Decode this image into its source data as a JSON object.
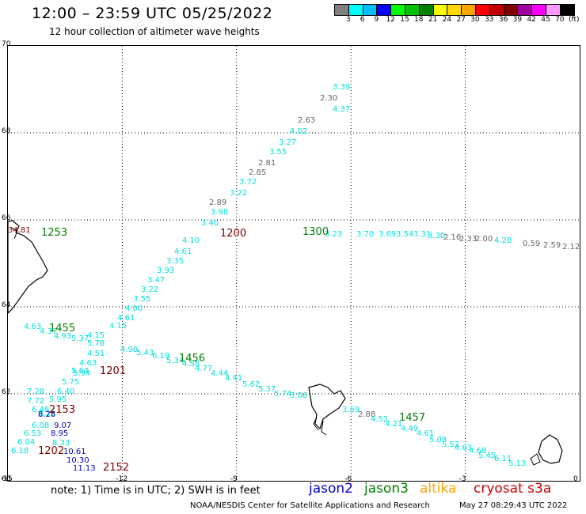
{
  "title": "12:00 – 23:59 UTC 05/25/2022",
  "subtitle": "12 hour collection of altimeter wave heights",
  "colorbar": {
    "unit": "(ft)",
    "colors": [
      "#808080",
      "#00ffff",
      "#00bfff",
      "#0000ff",
      "#00ff00",
      "#00c000",
      "#008000",
      "#ffff00",
      "#ffd700",
      "#ffa500",
      "#ff0000",
      "#c00000",
      "#800000",
      "#a000a0",
      "#ff00ff",
      "#ff99ff",
      "#000000"
    ],
    "labels": [
      "3",
      "6",
      "9",
      "12",
      "15",
      "18",
      "21",
      "24",
      "27",
      "30",
      "33",
      "36",
      "39",
      "42",
      "45",
      "70"
    ]
  },
  "axes": {
    "lon_labels": [
      "-15",
      "-12",
      "-9",
      "-6",
      "-3",
      "0"
    ],
    "lat_labels": [
      "70",
      "68",
      "66",
      "64",
      "62",
      "60"
    ]
  },
  "note": "note:  1) Time is in UTC; 2) SWH is in feet",
  "satellites": [
    {
      "name": "jason2",
      "color": "#0000cc"
    },
    {
      "name": "jason3",
      "color": "#008000"
    },
    {
      "name": "altika",
      "color": "#ffa500"
    },
    {
      "name": "cryosat s3a",
      "color": "#cc0000"
    }
  ],
  "credit": "NOAA/NESDIS Center for Satellite Applications and Research",
  "timestamp": "May 27 08:29:43 UTC 2022",
  "times": [
    {
      "t": "1253",
      "color": "#008000"
    },
    {
      "t": "1200",
      "color": "#800000"
    },
    {
      "t": "1300",
      "color": "#008000"
    },
    {
      "t": "1455",
      "color": "#008000"
    },
    {
      "t": "1456",
      "color": "#008000"
    },
    {
      "t": "1201",
      "color": "#800000"
    },
    {
      "t": "2153",
      "color": "#800000"
    },
    {
      "t": "1202",
      "color": "#800000"
    },
    {
      "t": "2152",
      "color": "#800000"
    },
    {
      "t": "1457",
      "color": "#008000"
    }
  ],
  "values": [
    {
      "v": "3.39",
      "c": "#00e0e0"
    },
    {
      "v": "2.30",
      "c": "#666666"
    },
    {
      "v": "4.37",
      "c": "#00e0e0"
    },
    {
      "v": "2.63",
      "c": "#666666"
    },
    {
      "v": "4.02",
      "c": "#00e0e0"
    },
    {
      "v": "3.27",
      "c": "#00e0e0"
    },
    {
      "v": "3.55",
      "c": "#00e0e0"
    },
    {
      "v": "2.81",
      "c": "#666666"
    },
    {
      "v": "2.85",
      "c": "#666666"
    },
    {
      "v": "3.72",
      "c": "#00e0e0"
    },
    {
      "v": "3.22",
      "c": "#00e0e0"
    },
    {
      "v": "2.89",
      "c": "#666666"
    },
    {
      "v": "3.98",
      "c": "#00e0e0"
    },
    {
      "v": "3.40",
      "c": "#00e0e0"
    },
    {
      "v": "4.10",
      "c": "#00e0e0"
    },
    {
      "v": "4.61",
      "c": "#00e0e0"
    },
    {
      "v": "3.35",
      "c": "#00e0e0"
    },
    {
      "v": "3.93",
      "c": "#00e0e0"
    },
    {
      "v": "3.47",
      "c": "#00e0e0"
    },
    {
      "v": "3.22",
      "c": "#00e0e0"
    },
    {
      "v": "3.55",
      "c": "#00e0e0"
    },
    {
      "v": "4.00",
      "c": "#00e0e0"
    },
    {
      "v": "4.61",
      "c": "#00e0e0"
    },
    {
      "v": "4.15",
      "c": "#00e0e0"
    },
    {
      "v": "34.81",
      "c": "#800000"
    },
    {
      "v": "3.23",
      "c": "#00e0e0"
    },
    {
      "v": "3.70",
      "c": "#00e0e0"
    },
    {
      "v": "3.69",
      "c": "#00e0e0"
    },
    {
      "v": "3.54",
      "c": "#00e0e0"
    },
    {
      "v": "3.31",
      "c": "#00e0e0"
    },
    {
      "v": "3.30",
      "c": "#00e0e0"
    },
    {
      "v": "2.16",
      "c": "#666666"
    },
    {
      "v": "2.33",
      "c": "#666666"
    },
    {
      "v": "2.00",
      "c": "#666666"
    },
    {
      "v": "4.28",
      "c": "#00e0e0"
    },
    {
      "v": "0.59",
      "c": "#666666"
    },
    {
      "v": "2.59",
      "c": "#666666"
    },
    {
      "v": "2.12",
      "c": "#666666"
    },
    {
      "v": "4.63",
      "c": "#00e0e0"
    },
    {
      "v": "4.37",
      "c": "#00e0e0"
    },
    {
      "v": "4.93",
      "c": "#00e0e0"
    },
    {
      "v": "5.37",
      "c": "#00e0e0"
    },
    {
      "v": "5.78",
      "c": "#00e0e0"
    },
    {
      "v": "4.15",
      "c": "#00e0e0"
    },
    {
      "v": "4.90",
      "c": "#00e0e0"
    },
    {
      "v": "5.43",
      "c": "#00e0e0"
    },
    {
      "v": "6.19",
      "c": "#00e0e0"
    },
    {
      "v": "5.34",
      "c": "#00e0e0"
    },
    {
      "v": "4.58",
      "c": "#00e0e0"
    },
    {
      "v": "4.77",
      "c": "#00e0e0"
    },
    {
      "v": "4.44",
      "c": "#00e0e0"
    },
    {
      "v": "4.41",
      "c": "#00e0e0"
    },
    {
      "v": "5.62",
      "c": "#00e0e0"
    },
    {
      "v": "5.37",
      "c": "#00e0e0"
    },
    {
      "v": "5.74",
      "c": "#00e0e0"
    },
    {
      "v": "3.06",
      "c": "#00e0e0"
    },
    {
      "v": "4.51",
      "c": "#00e0e0"
    },
    {
      "v": "4.63",
      "c": "#00e0e0"
    },
    {
      "v": "5.64",
      "c": "#00e0e0"
    },
    {
      "v": "5.94",
      "c": "#00e0e0"
    },
    {
      "v": "5.75",
      "c": "#00e0e0"
    },
    {
      "v": "6.40",
      "c": "#00e0e0"
    },
    {
      "v": "7.28",
      "c": "#00e0e0"
    },
    {
      "v": "7.72",
      "c": "#00e0e0"
    },
    {
      "v": "5.95",
      "c": "#00e0e0"
    },
    {
      "v": "6.48",
      "c": "#00e0e0"
    },
    {
      "v": "6.22",
      "c": "#00e0e0"
    },
    {
      "v": "8.28",
      "c": "#0000cc"
    },
    {
      "v": "6.08",
      "c": "#00e0e0"
    },
    {
      "v": "9.07",
      "c": "#0000cc"
    },
    {
      "v": "6.53",
      "c": "#00e0e0"
    },
    {
      "v": "8.95",
      "c": "#0000cc"
    },
    {
      "v": "6.04",
      "c": "#00e0e0"
    },
    {
      "v": "8.33",
      "c": "#00e0e0"
    },
    {
      "v": "6.18",
      "c": "#00e0e0"
    },
    {
      "v": "10.61",
      "c": "#0000cc"
    },
    {
      "v": "10.30",
      "c": "#0000cc"
    },
    {
      "v": "11.13",
      "c": "#0000cc"
    },
    {
      "v": "3.59",
      "c": "#00e0e0"
    },
    {
      "v": "2.88",
      "c": "#666666"
    },
    {
      "v": "4.52",
      "c": "#00e0e0"
    },
    {
      "v": "4.21",
      "c": "#00e0e0"
    },
    {
      "v": "4.49",
      "c": "#00e0e0"
    },
    {
      "v": "4.61",
      "c": "#00e0e0"
    },
    {
      "v": "5.08",
      "c": "#00e0e0"
    },
    {
      "v": "5.52",
      "c": "#00e0e0"
    },
    {
      "v": "4.63",
      "c": "#00e0e0"
    },
    {
      "v": "4.68",
      "c": "#00e0e0"
    },
    {
      "v": "5.45",
      "c": "#00e0e0"
    },
    {
      "v": "6.11",
      "c": "#00e0e0"
    },
    {
      "v": "5.13",
      "c": "#00e0e0"
    }
  ]
}
